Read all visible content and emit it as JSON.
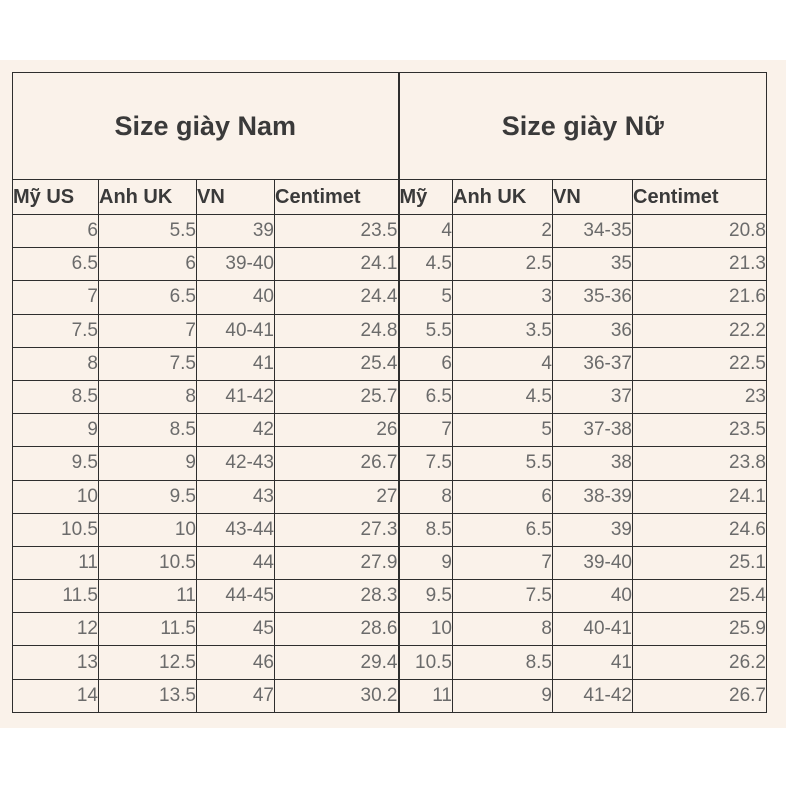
{
  "men": {
    "title": "Size giày Nam",
    "headers": [
      "Mỹ US",
      "Anh UK",
      "VN",
      "Centimet"
    ],
    "rows": [
      [
        "6",
        "5.5",
        "39",
        "23.5"
      ],
      [
        "6.5",
        "6",
        "39-40",
        "24.1"
      ],
      [
        "7",
        "6.5",
        "40",
        "24.4"
      ],
      [
        "7.5",
        "7",
        "40-41",
        "24.8"
      ],
      [
        "8",
        "7.5",
        "41",
        "25.4"
      ],
      [
        "8.5",
        "8",
        "41-42",
        "25.7"
      ],
      [
        "9",
        "8.5",
        "42",
        "26"
      ],
      [
        "9.5",
        "9",
        "42-43",
        "26.7"
      ],
      [
        "10",
        "9.5",
        "43",
        "27"
      ],
      [
        "10.5",
        "10",
        "43-44",
        "27.3"
      ],
      [
        "11",
        "10.5",
        "44",
        "27.9"
      ],
      [
        "11.5",
        "11",
        "44-45",
        "28.3"
      ],
      [
        "12",
        "11.5",
        "45",
        "28.6"
      ],
      [
        "13",
        "12.5",
        "46",
        "29.4"
      ],
      [
        "14",
        "13.5",
        "47",
        "30.2"
      ]
    ]
  },
  "women": {
    "title": "Size giày Nữ",
    "headers": [
      "Mỹ",
      "Anh UK",
      "VN",
      "Centimet"
    ],
    "rows": [
      [
        "4",
        "2",
        "34-35",
        "20.8"
      ],
      [
        "4.5",
        "2.5",
        "35",
        "21.3"
      ],
      [
        "5",
        "3",
        "35-36",
        "21.6"
      ],
      [
        "5.5",
        "3.5",
        "36",
        "22.2"
      ],
      [
        "6",
        "4",
        "36-37",
        "22.5"
      ],
      [
        "6.5",
        "4.5",
        "37",
        "23"
      ],
      [
        "7",
        "5",
        "37-38",
        "23.5"
      ],
      [
        "7.5",
        "5.5",
        "38",
        "23.8"
      ],
      [
        "8",
        "6",
        "38-39",
        "24.1"
      ],
      [
        "8.5",
        "6.5",
        "39",
        "24.6"
      ],
      [
        "9",
        "7",
        "39-40",
        "25.1"
      ],
      [
        "9.5",
        "7.5",
        "40",
        "25.4"
      ],
      [
        "10",
        "8",
        "40-41",
        "25.9"
      ],
      [
        "10.5",
        "8.5",
        "41",
        "26.2"
      ],
      [
        "11",
        "9",
        "41-42",
        "26.7"
      ]
    ]
  }
}
